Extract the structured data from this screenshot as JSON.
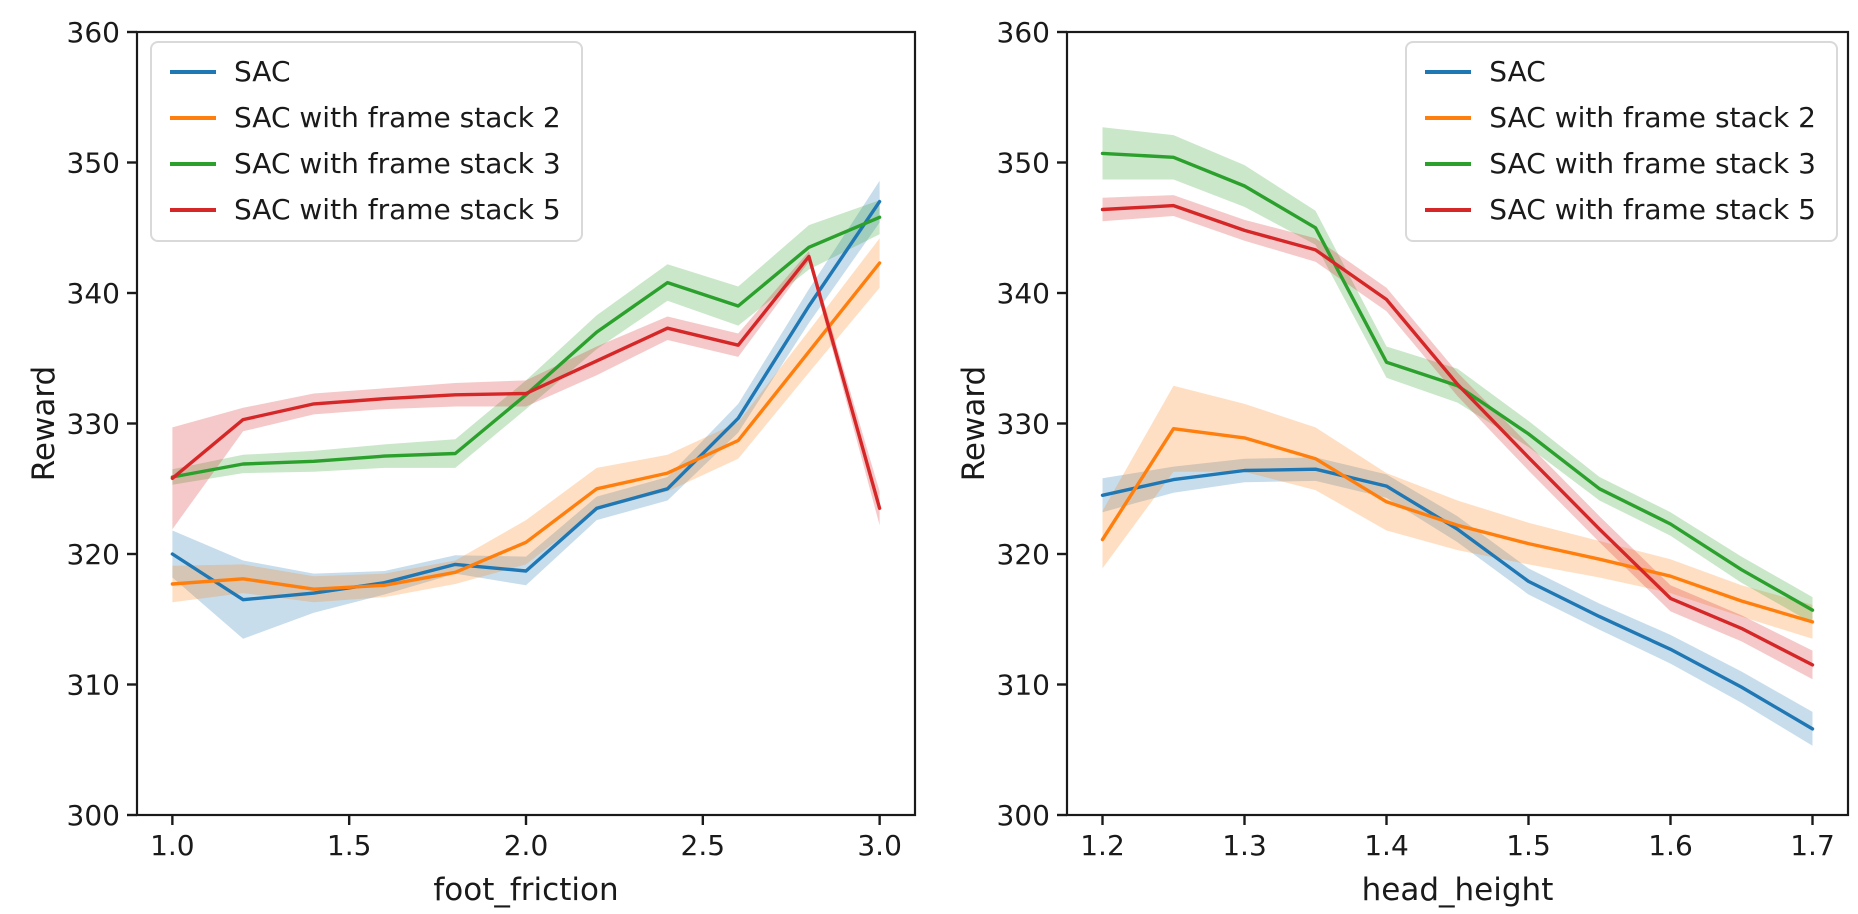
{
  "figure": {
    "background": "#ffffff",
    "text_color": "#1a1a1a"
  },
  "chart_data": [
    {
      "type": "line",
      "title": "",
      "xlabel": "foot_friction",
      "ylabel": "Reward",
      "xlim": [
        0.9,
        3.1
      ],
      "ylim": [
        300,
        360
      ],
      "x_ticks": [
        "1.0",
        "1.5",
        "2.0",
        "2.5",
        "3.0"
      ],
      "y_ticks": [
        "300",
        "310",
        "320",
        "330",
        "340",
        "350",
        "360"
      ],
      "grid": false,
      "legend_position": "upper left",
      "x": [
        1.0,
        1.2,
        1.4,
        1.6,
        1.8,
        2.0,
        2.2,
        2.4,
        2.6,
        2.8,
        3.0
      ],
      "series": [
        {
          "name": "SAC",
          "color": "#1f77b4",
          "values": [
            320.0,
            316.5,
            317.0,
            317.8,
            319.2,
            318.7,
            323.5,
            325.0,
            330.4,
            339.0,
            347.0
          ],
          "ci_half_width": [
            1.8,
            3.0,
            1.5,
            0.9,
            0.7,
            1.1,
            0.9,
            0.9,
            1.1,
            1.3,
            1.6
          ]
        },
        {
          "name": "SAC with frame stack 2",
          "color": "#ff7f0e",
          "values": [
            317.7,
            318.1,
            317.3,
            317.6,
            318.6,
            320.9,
            325.0,
            326.2,
            328.7,
            335.5,
            342.3
          ],
          "ci_half_width": [
            1.4,
            1.1,
            1.0,
            0.9,
            0.9,
            1.7,
            1.6,
            1.4,
            1.4,
            1.6,
            1.9
          ]
        },
        {
          "name": "SAC with frame stack 3",
          "color": "#2ca02c",
          "values": [
            325.9,
            326.9,
            327.1,
            327.5,
            327.7,
            332.2,
            337.0,
            340.8,
            339.0,
            343.5,
            345.8
          ],
          "ci_half_width": [
            0.6,
            0.7,
            0.8,
            0.9,
            1.1,
            1.1,
            1.3,
            1.4,
            1.5,
            1.7,
            1.3
          ]
        },
        {
          "name": "SAC with frame stack 5",
          "color": "#d62728",
          "values": [
            325.8,
            330.3,
            331.5,
            331.9,
            332.2,
            332.3,
            334.8,
            337.3,
            336.0,
            342.8,
            323.5
          ],
          "ci_half_width": [
            3.9,
            0.9,
            0.8,
            0.8,
            0.9,
            1.0,
            1.1,
            0.9,
            0.9,
            0.4,
            1.3
          ]
        }
      ]
    },
    {
      "type": "line",
      "title": "",
      "xlabel": "head_height",
      "ylabel": "Reward",
      "xlim": [
        1.175,
        1.725
      ],
      "ylim": [
        300,
        360
      ],
      "x_ticks": [
        "1.2",
        "1.3",
        "1.4",
        "1.5",
        "1.6",
        "1.7"
      ],
      "y_ticks": [
        "300",
        "310",
        "320",
        "330",
        "340",
        "350",
        "360"
      ],
      "grid": false,
      "legend_position": "upper right",
      "x": [
        1.2,
        1.25,
        1.3,
        1.35,
        1.4,
        1.45,
        1.5,
        1.55,
        1.6,
        1.65,
        1.7
      ],
      "series": [
        {
          "name": "SAC",
          "color": "#1f77b4",
          "values": [
            324.5,
            325.7,
            326.4,
            326.5,
            325.2,
            321.9,
            317.9,
            315.2,
            312.7,
            309.8,
            306.6
          ],
          "ci_half_width": [
            1.3,
            1.0,
            0.9,
            0.9,
            0.9,
            1.0,
            1.0,
            1.0,
            1.1,
            1.2,
            1.3
          ]
        },
        {
          "name": "SAC with frame stack 2",
          "color": "#ff7f0e",
          "values": [
            321.1,
            329.6,
            328.9,
            327.3,
            324.0,
            322.2,
            320.8,
            319.6,
            318.3,
            316.4,
            314.8
          ],
          "ci_half_width": [
            2.2,
            3.3,
            2.6,
            2.4,
            2.2,
            1.9,
            1.6,
            1.4,
            1.3,
            1.2,
            1.3
          ]
        },
        {
          "name": "SAC with frame stack 3",
          "color": "#2ca02c",
          "values": [
            350.7,
            350.4,
            348.2,
            345.0,
            334.7,
            332.9,
            329.2,
            325.0,
            322.3,
            318.8,
            315.7
          ],
          "ci_half_width": [
            2.0,
            1.7,
            1.6,
            1.3,
            1.2,
            1.3,
            1.0,
            0.9,
            0.9,
            1.0,
            1.0
          ]
        },
        {
          "name": "SAC with frame stack 5",
          "color": "#d62728",
          "values": [
            346.4,
            346.7,
            344.8,
            343.3,
            339.5,
            333.0,
            327.4,
            321.9,
            316.6,
            314.3,
            311.5
          ],
          "ci_half_width": [
            0.9,
            0.8,
            0.8,
            0.9,
            0.9,
            0.9,
            1.0,
            1.0,
            1.0,
            1.0,
            1.1
          ]
        }
      ]
    }
  ]
}
